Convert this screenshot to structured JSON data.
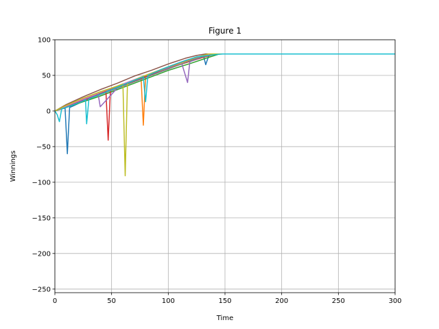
{
  "chart_data": {
    "type": "line",
    "title": "Figure 1",
    "xlabel": "Time",
    "ylabel": "Winnings",
    "xlim": [
      0,
      300
    ],
    "ylim": [
      -255,
      100
    ],
    "xticks": [
      0,
      50,
      100,
      150,
      200,
      250,
      300
    ],
    "xtick_labels": [
      "0",
      "50",
      "100",
      "150",
      "200",
      "250",
      "300"
    ],
    "yticks": [
      100,
      50,
      0,
      -50,
      -100,
      -150,
      -200,
      -250
    ],
    "ytick_labels": [
      "100",
      "50",
      "0",
      "−50",
      "−100",
      "−150",
      "−200",
      "−250"
    ],
    "grid": true,
    "legend": "none",
    "series": [
      {
        "color": "#1f77b4",
        "x": [
          0,
          3,
          6,
          9,
          11,
          13,
          16,
          20,
          30,
          45,
          60,
          80,
          100,
          115,
          125,
          131,
          133,
          136,
          140,
          300
        ],
        "y": [
          0,
          2,
          3,
          4,
          -60,
          5,
          7,
          10,
          18,
          28,
          37,
          49,
          61,
          70,
          74,
          78,
          65,
          79,
          80,
          80
        ]
      },
      {
        "color": "#ff7f0e",
        "x": [
          0,
          10,
          25,
          40,
          55,
          70,
          76,
          78,
          80,
          95,
          110,
          125,
          138,
          300
        ],
        "y": [
          0,
          6,
          15,
          24,
          33,
          43,
          47,
          -20,
          49,
          58,
          67,
          75,
          80,
          80
        ]
      },
      {
        "color": "#2ca02c",
        "x": [
          0,
          10,
          25,
          40,
          55,
          70,
          85,
          100,
          120,
          135,
          145,
          300
        ],
        "y": [
          0,
          5,
          13,
          21,
          30,
          39,
          48,
          57,
          67,
          75,
          80,
          80
        ]
      },
      {
        "color": "#d62728",
        "x": [
          0,
          10,
          25,
          40,
          45,
          47,
          49,
          60,
          75,
          90,
          110,
          130,
          142,
          300
        ],
        "y": [
          0,
          6,
          15,
          24,
          28,
          -41,
          30,
          36,
          45,
          54,
          65,
          75,
          80,
          80
        ]
      },
      {
        "color": "#9467bd",
        "x": [
          0,
          10,
          25,
          35,
          38,
          40,
          55,
          70,
          85,
          100,
          112,
          117,
          119,
          130,
          139,
          300
        ],
        "y": [
          0,
          7,
          16,
          22,
          25,
          6,
          32,
          41,
          50,
          60,
          66,
          40,
          69,
          76,
          80,
          80
        ]
      },
      {
        "color": "#8c564b",
        "x": [
          0,
          10,
          25,
          40,
          55,
          70,
          85,
          100,
          115,
          125,
          133,
          300
        ],
        "y": [
          0,
          9,
          20,
          30,
          39,
          49,
          57,
          66,
          74,
          78,
          80,
          80
        ]
      },
      {
        "color": "#e377c2",
        "x": [
          0,
          10,
          25,
          40,
          55,
          70,
          85,
          100,
          115,
          130,
          140,
          300
        ],
        "y": [
          0,
          7,
          17,
          26,
          35,
          44,
          53,
          62,
          71,
          77,
          80,
          80
        ]
      },
      {
        "color": "#7f7f7f",
        "x": [
          0,
          10,
          25,
          40,
          55,
          70,
          85,
          100,
          115,
          128,
          141,
          300
        ],
        "y": [
          0,
          5,
          14,
          23,
          32,
          41,
          50,
          59,
          68,
          75,
          80,
          80
        ]
      },
      {
        "color": "#bcbd22",
        "x": [
          0,
          10,
          25,
          40,
          55,
          60,
          62,
          64,
          75,
          90,
          105,
          120,
          135,
          300
        ],
        "y": [
          0,
          8,
          18,
          27,
          35,
          38,
          -91,
          39,
          47,
          56,
          65,
          73,
          80,
          80
        ]
      },
      {
        "color": "#17becf",
        "x": [
          0,
          2,
          4,
          6,
          15,
          25,
          27,
          28,
          30,
          50,
          65,
          78,
          80,
          82,
          95,
          110,
          125,
          140,
          148,
          300
        ],
        "y": [
          0,
          -5,
          -15,
          3,
          8,
          14,
          16,
          -18,
          17,
          30,
          40,
          48,
          13,
          50,
          59,
          68,
          76,
          79,
          80,
          80
        ]
      }
    ]
  }
}
